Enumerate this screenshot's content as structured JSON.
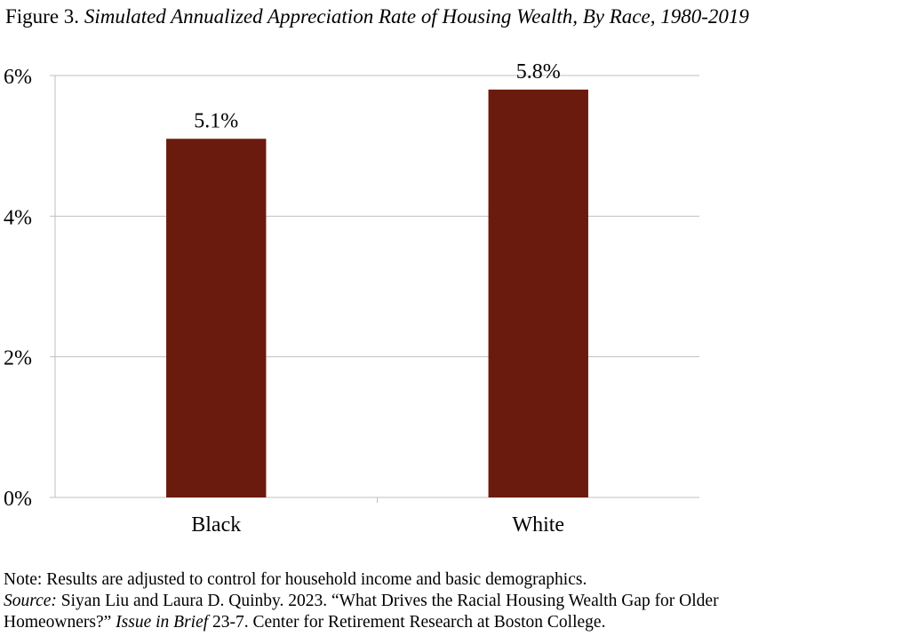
{
  "figure": {
    "label": "Figure 3.",
    "title": "Simulated Annualized Appreciation Rate of Housing Wealth, By Race, 1980-2019"
  },
  "chart_data": {
    "type": "bar",
    "categories": [
      "Black",
      "White"
    ],
    "values": [
      5.1,
      5.8
    ],
    "value_labels": [
      "5.1%",
      "5.8%"
    ],
    "ylim": [
      0,
      6
    ],
    "yticks": [
      0,
      2,
      4,
      6
    ],
    "ytick_labels": [
      "0%",
      "2%",
      "4%",
      "6%"
    ],
    "grid": true,
    "legend": "none",
    "bar_color": "#6b1a0e",
    "grid_color": "#bfbfbf"
  },
  "notes": {
    "note": "Note: Results are adjusted to control for household income and basic demographics.",
    "source_label": "Source:",
    "source_text_1": " Siyan Liu and Laura D. Quinby. 2023. “What Drives the Racial Housing Wealth Gap for Older",
    "source_text_2a": "Homeowners?” ",
    "source_series": "Issue in Brief",
    "source_text_2b": " 23-7. Center for Retirement Research at Boston College."
  }
}
